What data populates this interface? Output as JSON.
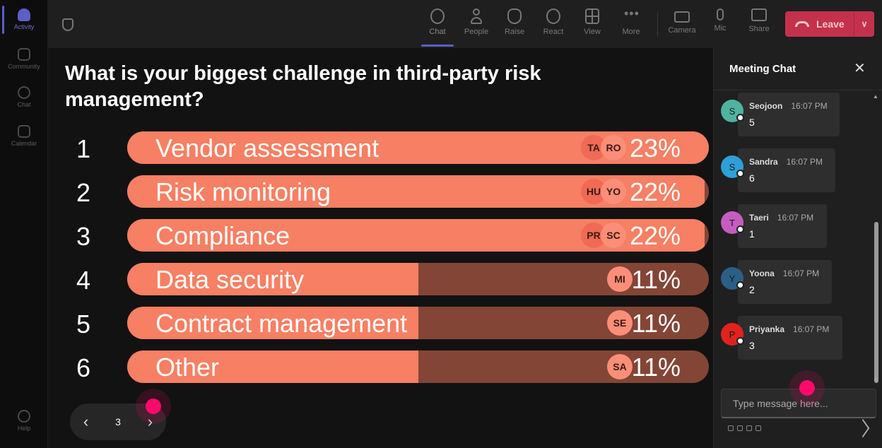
{
  "rail": {
    "items": [
      {
        "label": "Activity"
      },
      {
        "label": "Community"
      },
      {
        "label": "Chat"
      },
      {
        "label": "Calendar"
      },
      {
        "label": "Help"
      }
    ]
  },
  "toolbar": {
    "chat": "Chat",
    "people": "People",
    "raise": "Raise",
    "react": "React",
    "view": "View",
    "more": "More",
    "camera": "Camera",
    "mic": "Mic",
    "share": "Share",
    "leave": "Leave"
  },
  "poll": {
    "question": "What is your biggest challenge in third-party risk management?",
    "options": [
      {
        "num": "1",
        "label": "Vendor assessment",
        "pct": "23%",
        "fraction": 0.23,
        "avatars": [
          "TA",
          "RO"
        ]
      },
      {
        "num": "2",
        "label": "Risk monitoring",
        "pct": "22%",
        "fraction": 0.22,
        "avatars": [
          "HU",
          "YO"
        ]
      },
      {
        "num": "3",
        "label": "Compliance",
        "pct": "22%",
        "fraction": 0.22,
        "avatars": [
          "PR",
          "SC"
        ]
      },
      {
        "num": "4",
        "label": "Data security",
        "pct": "11%",
        "fraction": 0.11,
        "avatars": [
          "MI"
        ]
      },
      {
        "num": "5",
        "label": "Contract management",
        "pct": "11%",
        "fraction": 0.11,
        "avatars": [
          "SE"
        ]
      },
      {
        "num": "6",
        "label": "Other",
        "pct": "11%",
        "fraction": 0.11,
        "avatars": [
          "SA"
        ]
      }
    ],
    "page": "3"
  },
  "chat": {
    "title": "Meeting Chat",
    "messages": [
      {
        "initial": "S",
        "name": "Seojoon",
        "time": "16:07 PM",
        "text": "5",
        "color": "#4fb3a0"
      },
      {
        "initial": "S",
        "name": "Sandra",
        "time": "16:07 PM",
        "text": "6",
        "color": "#2e9fd8"
      },
      {
        "initial": "T",
        "name": "Taeri",
        "time": "16:07 PM",
        "text": "1",
        "color": "#c55dc0"
      },
      {
        "initial": "Y",
        "name": "Yoona",
        "time": "16:07 PM",
        "text": "2",
        "color": "#2b5f86"
      },
      {
        "initial": "P",
        "name": "Priyanka",
        "time": "16:07 PM",
        "text": "3",
        "color": "#e0231f"
      }
    ],
    "input_placeholder": "Type message here..."
  }
}
